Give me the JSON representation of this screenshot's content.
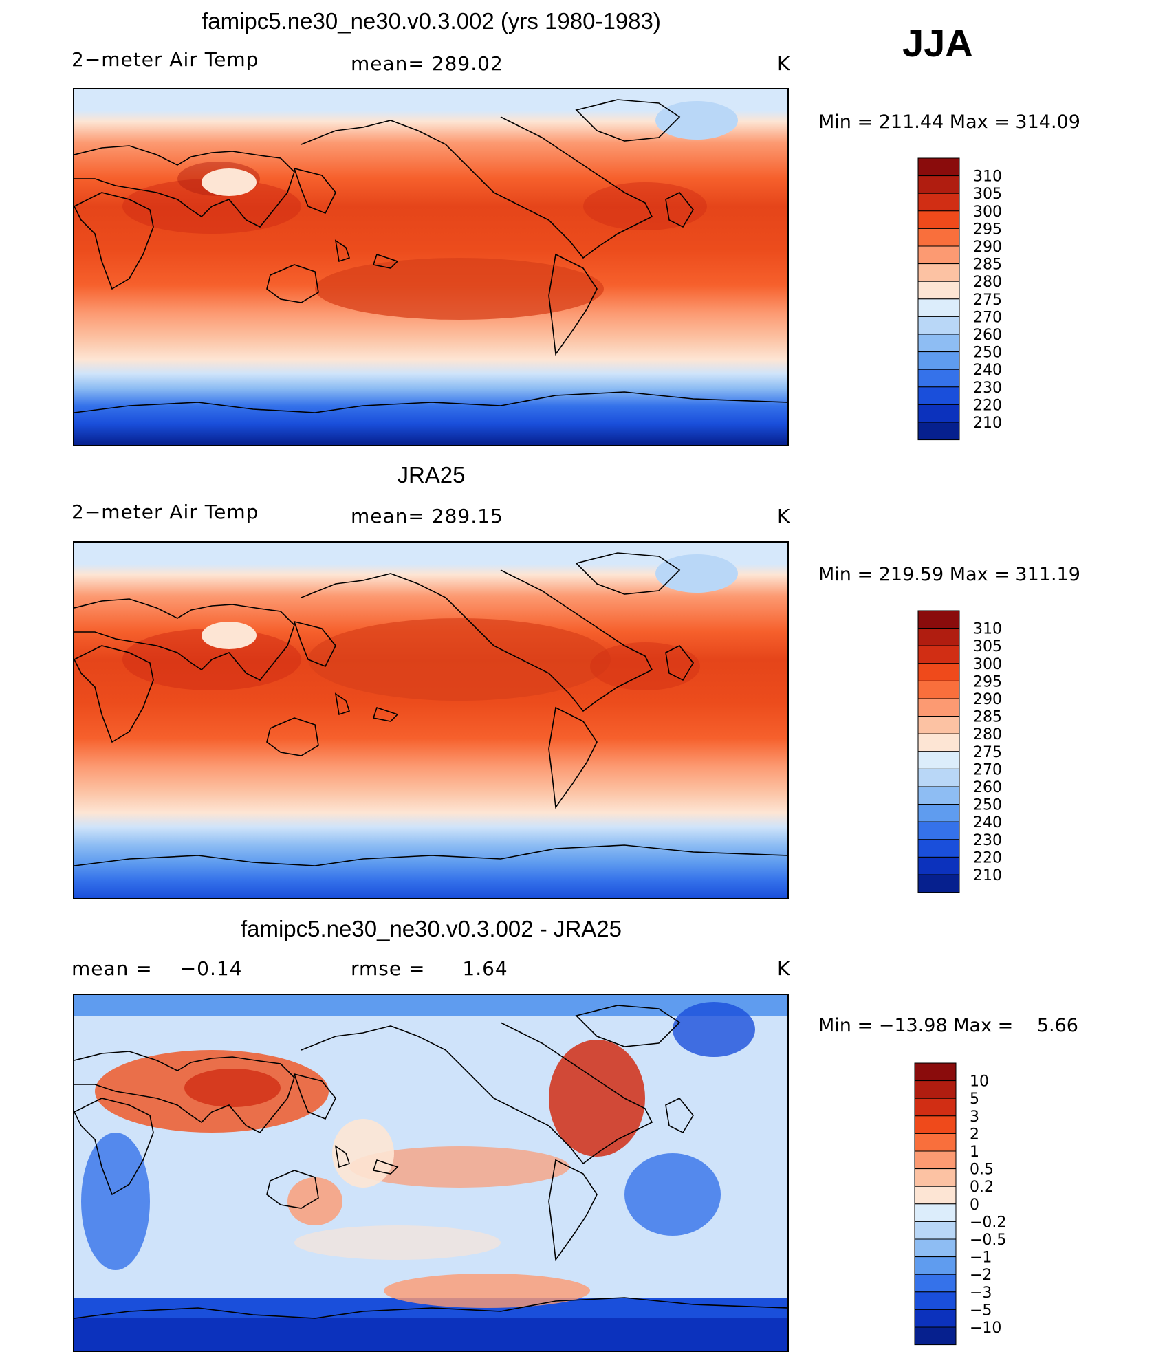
{
  "season": "JJA",
  "chart_data": [
    {
      "type": "heatmap",
      "title": "famipc5.ne30_ne30.v0.3.002 (yrs 1980-1983)",
      "variable": "2−meter Air Temp",
      "stat_label": "mean=",
      "stat_value": "289.02",
      "units": "K",
      "min_label": "Min  =",
      "min_value": "211.44",
      "max_label": "Max  =",
      "max_value": "314.09",
      "colorbar_labels": [
        "310",
        "305",
        "300",
        "295",
        "290",
        "285",
        "280",
        "275",
        "270",
        "260",
        "250",
        "240",
        "230",
        "220",
        "210"
      ],
      "colorbar_colors": [
        "#8a0c0c",
        "#b01d10",
        "#d12e14",
        "#ef4a1b",
        "#f96f3c",
        "#fc9a72",
        "#fcc2a3",
        "#fde5d4",
        "#dcedfb",
        "#b9d7f7",
        "#8ebdf3",
        "#5f9cef",
        "#3572ea",
        "#1a4fdb",
        "#0c32bd",
        "#06208e"
      ],
      "zonal_profile_K": [
        228,
        250,
        270,
        283,
        290,
        295,
        297,
        297,
        295,
        290,
        284,
        280,
        272
      ],
      "description": "Global map of JJA 2-meter air temperature"
    },
    {
      "type": "heatmap",
      "title": "JRA25",
      "variable": "2−meter Air Temp",
      "stat_label": "mean=",
      "stat_value": "289.15",
      "units": "K",
      "min_label": "Min  =",
      "min_value": "219.59",
      "max_label": "Max  =",
      "max_value": "311.19",
      "colorbar_labels": [
        "310",
        "305",
        "300",
        "295",
        "290",
        "285",
        "280",
        "275",
        "270",
        "260",
        "250",
        "240",
        "230",
        "220",
        "210"
      ],
      "colorbar_colors": [
        "#8a0c0c",
        "#b01d10",
        "#d12e14",
        "#ef4a1b",
        "#f96f3c",
        "#fc9a72",
        "#fcc2a3",
        "#fde5d4",
        "#dcedfb",
        "#b9d7f7",
        "#8ebdf3",
        "#5f9cef",
        "#3572ea",
        "#1a4fdb",
        "#0c32bd",
        "#06208e"
      ],
      "zonal_profile_K": [
        238,
        256,
        272,
        284,
        291,
        296,
        298,
        298,
        296,
        291,
        285,
        281,
        273
      ]
    },
    {
      "type": "heatmap",
      "title": "famipc5.ne30_ne30.v0.3.002 - JRA25",
      "stat_label": "mean =",
      "stat_value": "−0.14",
      "stat2_label": "rmse =",
      "stat2_value": "1.64",
      "units": "K",
      "min_label": "Min  =",
      "min_value": "−13.98",
      "max_label": "Max  =",
      "max_value": "5.66",
      "colorbar_labels": [
        "10",
        "5",
        "3",
        "2",
        "1",
        "0.5",
        "0.2",
        "0",
        "−0.2",
        "−0.5",
        "−1",
        "−2",
        "−3",
        "−5",
        "−10"
      ],
      "colorbar_colors": [
        "#8a0c0c",
        "#b01d10",
        "#d12e14",
        "#ef4a1b",
        "#f96f3c",
        "#fc9a72",
        "#fcc2a3",
        "#fde5d4",
        "#dcedfb",
        "#b9d7f7",
        "#8ebdf3",
        "#5f9cef",
        "#3572ea",
        "#1a4fdb",
        "#0c32bd",
        "#06208e"
      ]
    }
  ]
}
